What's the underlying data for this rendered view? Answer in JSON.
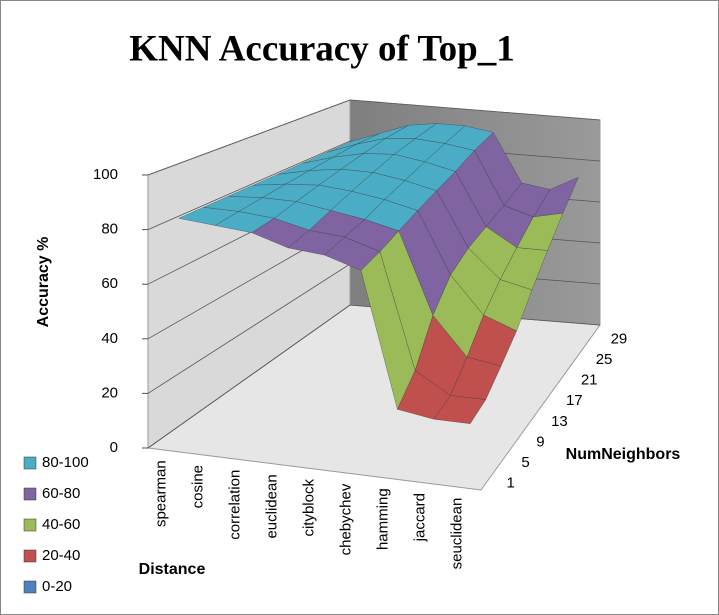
{
  "chart_data": {
    "type": "surface",
    "title": "KNN Accuracy of Top_1",
    "z_label": "Accuracy %",
    "x_label": "Distance",
    "y_label": "NumNeighbors",
    "x": [
      "spearman",
      "cosine",
      "correlation",
      "euclidean",
      "cityblock",
      "chebychev",
      "hamming",
      "jaccard",
      "seuclidean"
    ],
    "y": [
      "1",
      "5",
      "9",
      "13",
      "17",
      "21",
      "25",
      "29"
    ],
    "values": [
      [
        83,
        82,
        81,
        77,
        76,
        72,
        22,
        20,
        20
      ],
      [
        83,
        83,
        82,
        79,
        78,
        74,
        30,
        22,
        22
      ],
      [
        83,
        84,
        84,
        82,
        80,
        77,
        45,
        30,
        28
      ],
      [
        83,
        85,
        86,
        85,
        83,
        80,
        55,
        40,
        35
      ],
      [
        83,
        86,
        88,
        88,
        86,
        83,
        60,
        48,
        45
      ],
      [
        83,
        87,
        90,
        91,
        89,
        86,
        63,
        55,
        55
      ],
      [
        83,
        88,
        92,
        93,
        92,
        90,
        66,
        62,
        65
      ],
      [
        83,
        88,
        93,
        95,
        95,
        93,
        70,
        68,
        75
      ]
    ],
    "zlim": [
      0,
      100
    ],
    "zticks": [
      0,
      20,
      40,
      60,
      80,
      100
    ],
    "grid": true,
    "legend": [
      {
        "name": "80-100",
        "color": "#4bacc6",
        "min": 80,
        "max": 100
      },
      {
        "name": "60-80",
        "color": "#8064a2",
        "min": 60,
        "max": 80
      },
      {
        "name": "40-60",
        "color": "#9bbb59",
        "min": 40,
        "max": 60
      },
      {
        "name": "20-40",
        "color": "#c0504d",
        "min": 20,
        "max": 40
      },
      {
        "name": "0-20",
        "color": "#4f81bd",
        "min": 0,
        "max": 20
      }
    ]
  }
}
